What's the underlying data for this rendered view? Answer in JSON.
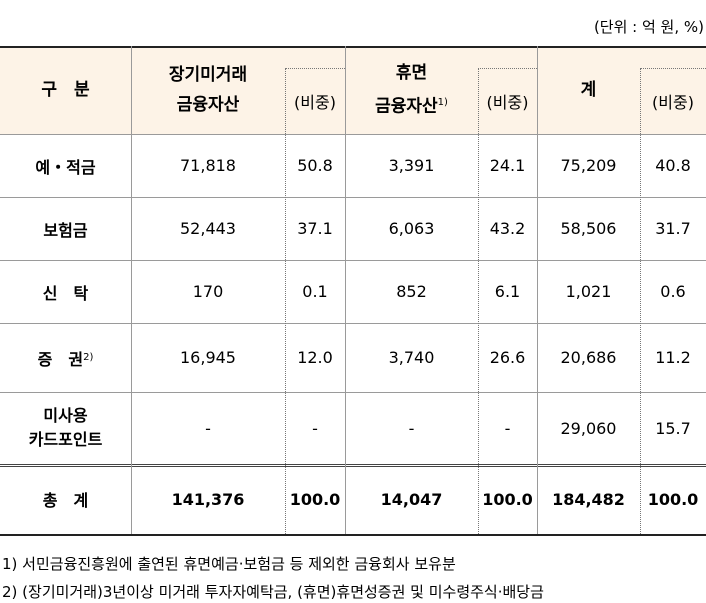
{
  "unit_note": "(단위 : 억 원, %)",
  "headers": {
    "category": "구　분",
    "long_inactive_l1": "장기미거래",
    "long_inactive_l2": "금융자산",
    "share": "(비중)",
    "dormant_l1": "휴면",
    "dormant_l2": "금융자산",
    "dormant_sup": "1)",
    "total": "계"
  },
  "rows": [
    {
      "label": "예・적금",
      "long_amount": "71,818",
      "long_share": "50.8",
      "dormant_amount": "3,391",
      "dormant_share": "24.1",
      "total_amount": "75,209",
      "total_share": "40.8"
    },
    {
      "label": "보험금",
      "long_amount": "52,443",
      "long_share": "37.1",
      "dormant_amount": "6,063",
      "dormant_share": "43.2",
      "total_amount": "58,506",
      "total_share": "31.7"
    },
    {
      "label": "신　탁",
      "long_amount": "170",
      "long_share": "0.1",
      "dormant_amount": "852",
      "dormant_share": "6.1",
      "total_amount": "1,021",
      "total_share": "0.6"
    },
    {
      "label": "증　권",
      "label_sup": "2)",
      "long_amount": "16,945",
      "long_share": "12.0",
      "dormant_amount": "3,740",
      "dormant_share": "26.6",
      "total_amount": "20,686",
      "total_share": "11.2"
    },
    {
      "label_l1": "미사용",
      "label_l2": "카드포인트",
      "long_amount": "-",
      "long_share": "-",
      "dormant_amount": "-",
      "dormant_share": "-",
      "total_amount": "29,060",
      "total_share": "15.7"
    },
    {
      "label": "총　계",
      "long_amount": "141,376",
      "long_share": "100.0",
      "dormant_amount": "14,047",
      "dormant_share": "100.0",
      "total_amount": "184,482",
      "total_share": "100.0"
    }
  ],
  "footnotes": [
    "1) 서민금융진흥원에 출연된 휴면예금·보험금 등 제외한 금융회사 보유분",
    "2) (장기미거래)3년이상 미거래 투자자예탁금, (휴면)휴면성증권 및 미수령주식·배당금"
  ]
}
